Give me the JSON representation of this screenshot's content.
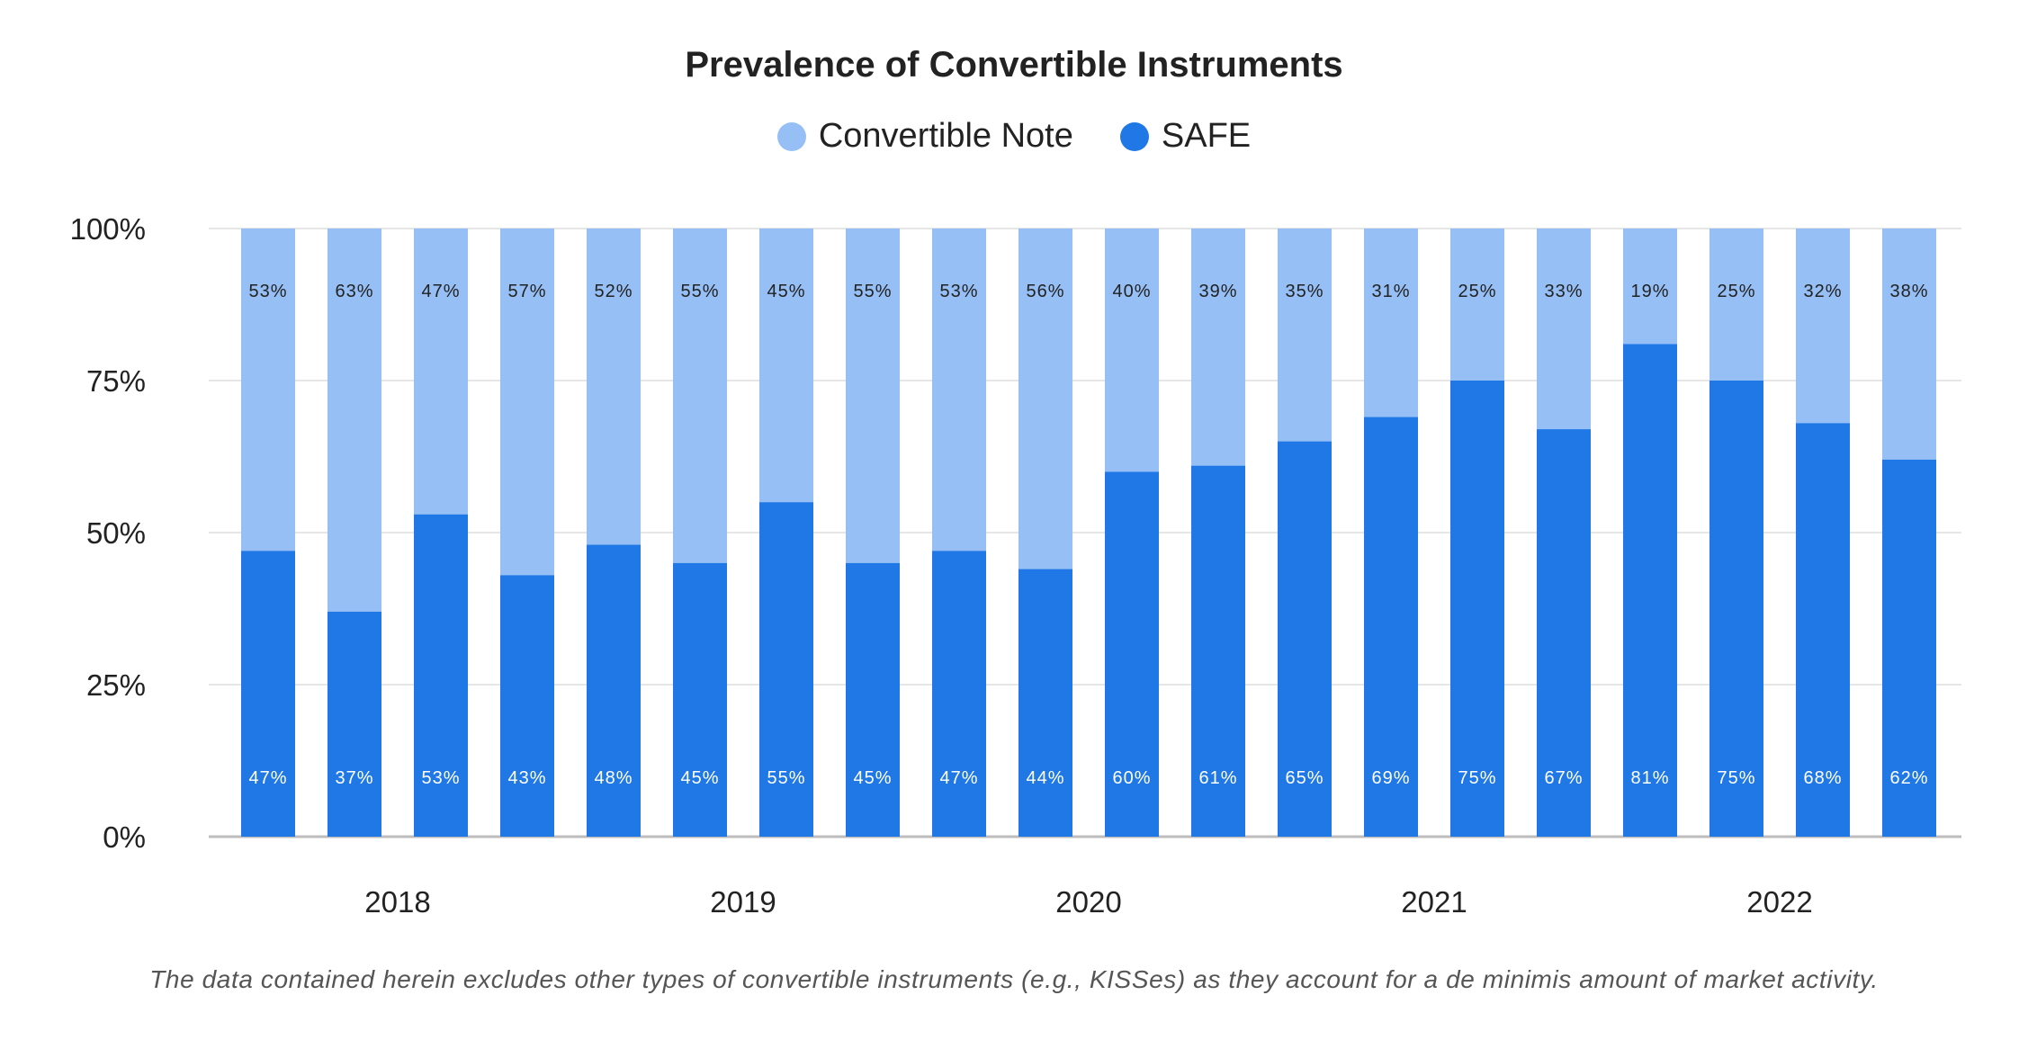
{
  "chart_data": {
    "type": "bar",
    "stacked": true,
    "title": "Prevalence of Convertible Instruments",
    "footnote": "The data contained herein excludes other types of convertible instruments (e.g., KISSes) as they account for a de minimis amount of market activity.",
    "legend": {
      "placement": "top-center",
      "entries": [
        "Convertible Note",
        "SAFE"
      ]
    },
    "y_axis": {
      "ylim": [
        0,
        100
      ],
      "ticks": [
        0,
        25,
        50,
        75,
        100
      ],
      "tick_labels": [
        "0%",
        "25%",
        "50%",
        "75%",
        "100%"
      ],
      "grid": true
    },
    "x_axis": {
      "year_labels": [
        "2018",
        "2019",
        "2020",
        "2021",
        "2022"
      ],
      "bars_per_year": 4
    },
    "series": [
      {
        "name": "SAFE",
        "color": "#1f78e6",
        "label_color": "#ffffff",
        "values": [
          47,
          37,
          53,
          43,
          48,
          45,
          55,
          45,
          47,
          44,
          60,
          61,
          65,
          69,
          75,
          67,
          81,
          75,
          68,
          62
        ],
        "labels": [
          "47%",
          "37%",
          "53%",
          "43%",
          "48%",
          "45%",
          "55%",
          "45%",
          "47%",
          "44%",
          "60%",
          "61%",
          "65%",
          "69%",
          "75%",
          "67%",
          "81%",
          "75%",
          "68%",
          "62%"
        ]
      },
      {
        "name": "Convertible Note",
        "color": "#96bff5",
        "label_color": "#222222",
        "values": [
          53,
          63,
          47,
          57,
          52,
          55,
          45,
          55,
          53,
          56,
          40,
          39,
          35,
          31,
          25,
          33,
          19,
          25,
          32,
          38
        ],
        "labels": [
          "53%",
          "63%",
          "47%",
          "57%",
          "52%",
          "55%",
          "45%",
          "55%",
          "53%",
          "56%",
          "40%",
          "39%",
          "35%",
          "31%",
          "25%",
          "33%",
          "19%",
          "25%",
          "32%",
          "38%"
        ]
      }
    ],
    "colors": {
      "grid": "#e6e6e6",
      "baseline": "#bdbdbd",
      "text": "#222222"
    }
  }
}
